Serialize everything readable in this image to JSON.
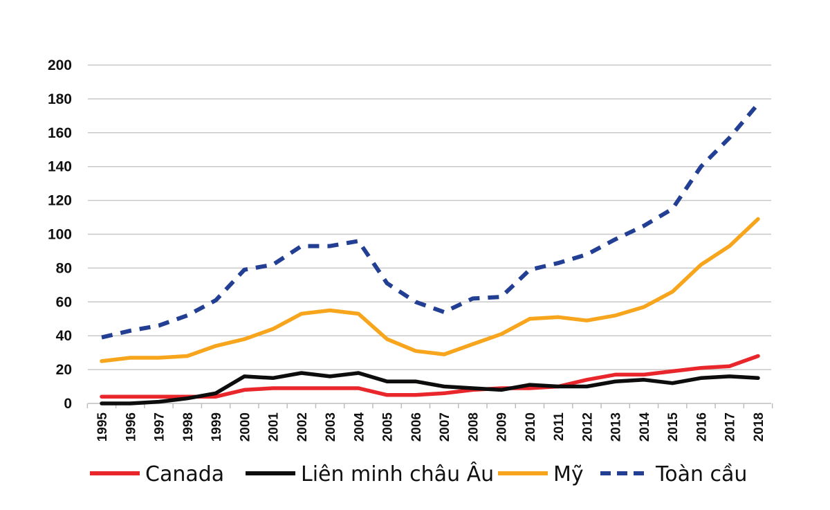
{
  "chart_data": {
    "type": "line",
    "title": "",
    "xlabel": "",
    "ylabel": "",
    "ylim": [
      0,
      200
    ],
    "yticks": [
      0,
      20,
      40,
      60,
      80,
      100,
      120,
      140,
      160,
      180,
      200
    ],
    "grid": true,
    "legend_position": "bottom",
    "categories": [
      "1995",
      "1996",
      "1997",
      "1998",
      "1999",
      "2000",
      "2001",
      "2002",
      "2003",
      "2004",
      "2005",
      "2006",
      "2007",
      "2008",
      "2009",
      "2010",
      "2011",
      "2012",
      "2013",
      "2014",
      "2015",
      "2016",
      "2017",
      "2018"
    ],
    "series": [
      {
        "name": "Canada",
        "color": "#e8262b",
        "style": "solid",
        "values": [
          4,
          4,
          4,
          4,
          4,
          8,
          9,
          9,
          9,
          9,
          5,
          5,
          6,
          8,
          9,
          9,
          10,
          14,
          17,
          17,
          19,
          21,
          22,
          28
        ]
      },
      {
        "name": "Liên minh châu Âu",
        "color": "#0d0d0d",
        "style": "solid",
        "values": [
          0,
          0,
          1,
          3,
          6,
          16,
          15,
          18,
          16,
          18,
          13,
          13,
          10,
          9,
          8,
          11,
          10,
          10,
          13,
          14,
          12,
          15,
          16,
          15
        ]
      },
      {
        "name": "Mỹ",
        "color": "#f7a51c",
        "style": "solid",
        "values": [
          25,
          27,
          27,
          28,
          34,
          38,
          44,
          53,
          55,
          53,
          38,
          31,
          29,
          35,
          41,
          50,
          51,
          49,
          52,
          57,
          66,
          82,
          93,
          109
        ]
      },
      {
        "name": "Toàn cầu",
        "color": "#233f93",
        "style": "dashed",
        "values": [
          39,
          43,
          46,
          52,
          61,
          79,
          82,
          93,
          93,
          96,
          71,
          60,
          54,
          62,
          63,
          79,
          83,
          88,
          97,
          105,
          115,
          140,
          157,
          177
        ]
      }
    ]
  }
}
